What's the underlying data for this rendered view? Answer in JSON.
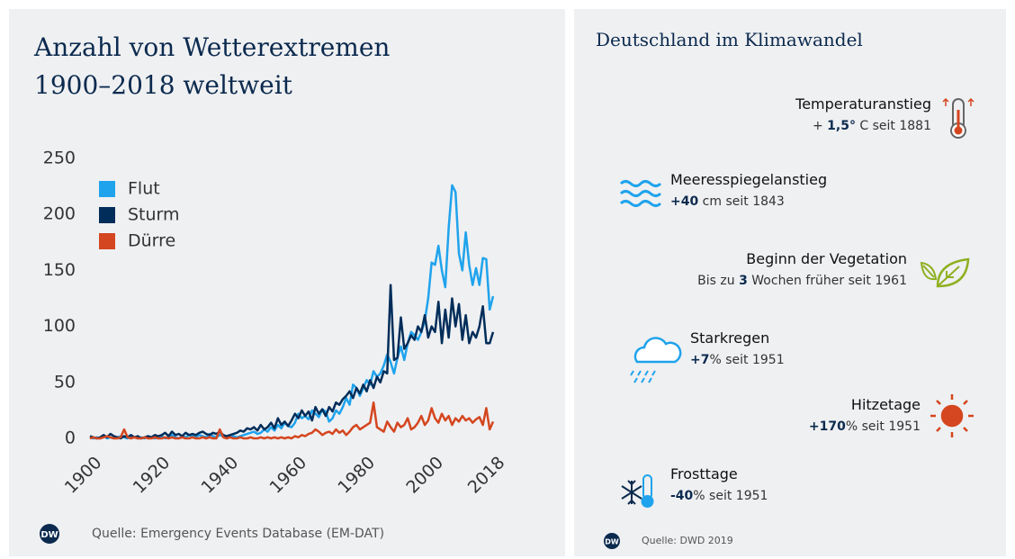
{
  "chart_data": {
    "type": "line",
    "title": "Anzahl von Wetterextremen 1900–2018 weltweit",
    "source": "Quelle: Emergency Events Database (EM-DAT)",
    "x": [
      1900,
      1901,
      1902,
      1903,
      1904,
      1905,
      1906,
      1907,
      1908,
      1909,
      1910,
      1911,
      1912,
      1913,
      1914,
      1915,
      1916,
      1917,
      1918,
      1919,
      1920,
      1921,
      1922,
      1923,
      1924,
      1925,
      1926,
      1927,
      1928,
      1929,
      1930,
      1931,
      1932,
      1933,
      1934,
      1935,
      1936,
      1937,
      1938,
      1939,
      1940,
      1941,
      1942,
      1943,
      1944,
      1945,
      1946,
      1947,
      1948,
      1949,
      1950,
      1951,
      1952,
      1953,
      1954,
      1955,
      1956,
      1957,
      1958,
      1959,
      1960,
      1961,
      1962,
      1963,
      1964,
      1965,
      1966,
      1967,
      1968,
      1969,
      1970,
      1971,
      1972,
      1973,
      1974,
      1975,
      1976,
      1977,
      1978,
      1979,
      1980,
      1981,
      1982,
      1983,
      1984,
      1985,
      1986,
      1987,
      1988,
      1989,
      1990,
      1991,
      1992,
      1993,
      1994,
      1995,
      1996,
      1997,
      1998,
      1999,
      2000,
      2001,
      2002,
      2003,
      2004,
      2005,
      2006,
      2007,
      2008,
      2009,
      2010,
      2011,
      2012,
      2013,
      2014,
      2015,
      2016,
      2017,
      2018
    ],
    "series": [
      {
        "name": "Flut",
        "color": "#1fa3ec",
        "values": [
          1,
          0,
          1,
          0,
          2,
          0,
          1,
          0,
          1,
          2,
          1,
          0,
          2,
          1,
          0,
          1,
          0,
          2,
          1,
          0,
          1,
          2,
          0,
          1,
          3,
          1,
          0,
          2,
          1,
          3,
          2,
          1,
          3,
          2,
          1,
          4,
          2,
          1,
          3,
          2,
          0,
          1,
          2,
          1,
          2,
          3,
          4,
          5,
          6,
          4,
          5,
          8,
          6,
          10,
          7,
          12,
          9,
          14,
          11,
          10,
          14,
          22,
          18,
          20,
          17,
          25,
          22,
          19,
          26,
          24,
          15,
          18,
          25,
          22,
          28,
          36,
          30,
          48,
          45,
          38,
          45,
          52,
          48,
          60,
          55,
          58,
          65,
          75,
          68,
          58,
          72,
          82,
          70,
          85,
          95,
          92,
          88,
          95,
          105,
          125,
          157,
          155,
          172,
          150,
          135,
          188,
          226,
          220,
          165,
          150,
          184,
          155,
          137,
          152,
          137,
          161,
          160,
          115,
          127
        ]
      },
      {
        "name": "Sturm",
        "color": "#002d5a",
        "values": [
          2,
          1,
          0,
          1,
          3,
          1,
          4,
          2,
          1,
          0,
          2,
          1,
          3,
          1,
          2,
          0,
          1,
          2,
          1,
          3,
          2,
          3,
          5,
          2,
          6,
          3,
          4,
          2,
          5,
          3,
          4,
          3,
          5,
          6,
          4,
          3,
          5,
          4,
          6,
          3,
          2,
          3,
          4,
          5,
          7,
          6,
          9,
          8,
          10,
          7,
          12,
          8,
          10,
          14,
          9,
          18,
          12,
          15,
          11,
          16,
          22,
          18,
          25,
          20,
          24,
          16,
          28,
          22,
          26,
          20,
          28,
          24,
          32,
          30,
          35,
          38,
          42,
          36,
          45,
          40,
          48,
          42,
          52,
          45,
          55,
          50,
          60,
          58,
          137,
          70,
          72,
          108,
          80,
          85,
          92,
          88,
          100,
          95,
          110,
          90,
          100,
          95,
          122,
          85,
          115,
          90,
          125,
          100,
          120,
          88,
          110,
          85,
          95,
          90,
          100,
          118,
          85,
          85,
          95
        ]
      },
      {
        "name": "Dürre",
        "color": "#d4461f",
        "values": [
          0,
          1,
          0,
          0,
          1,
          2,
          1,
          0,
          0,
          1,
          8,
          1,
          0,
          1,
          0,
          0,
          1,
          0,
          0,
          1,
          0,
          0,
          1,
          0,
          1,
          0,
          0,
          1,
          0,
          0,
          1,
          0,
          0,
          1,
          0,
          1,
          0,
          0,
          8,
          1,
          0,
          1,
          0,
          0,
          1,
          0,
          0,
          1,
          0,
          0,
          1,
          0,
          1,
          0,
          1,
          0,
          1,
          0,
          1,
          0,
          2,
          1,
          3,
          2,
          4,
          5,
          8,
          6,
          3,
          5,
          6,
          4,
          8,
          5,
          7,
          3,
          6,
          10,
          12,
          8,
          10,
          12,
          14,
          32,
          10,
          8,
          6,
          15,
          10,
          6,
          14,
          10,
          12,
          18,
          8,
          10,
          14,
          20,
          12,
          16,
          27,
          18,
          14,
          22,
          16,
          20,
          12,
          18,
          15,
          20,
          16,
          18,
          14,
          17,
          19,
          12,
          27,
          8,
          15
        ]
      }
    ],
    "xlim": [
      1900,
      2018
    ],
    "xticks": [
      1900,
      1920,
      1940,
      1960,
      1980,
      2000,
      2018
    ],
    "ylim": [
      0,
      250
    ],
    "yticks": [
      0,
      50,
      100,
      150,
      200,
      250
    ],
    "grid": false,
    "legend": "upper left"
  },
  "logo": "DW",
  "panel": {
    "title": "Deutschland im Klimawandel",
    "items": [
      {
        "label": "Temperaturanstieg",
        "detail": [
          {
            "text": "+ ",
            "bold": false
          },
          {
            "text": "1,5°",
            "bold": true
          },
          {
            "text": " C seit 1881",
            "bold": false
          }
        ]
      },
      {
        "label": "Meeresspiegelanstieg",
        "detail": [
          {
            "text": "+40",
            "bold": true
          },
          {
            "text": " cm seit 1843",
            "bold": false
          }
        ]
      },
      {
        "label": "Beginn der Vegetation",
        "detail": [
          {
            "text": "Bis zu ",
            "bold": false
          },
          {
            "text": "3",
            "bold": true
          },
          {
            "text": " Wochen früher seit 1961",
            "bold": false
          }
        ]
      },
      {
        "label": "Starkregen",
        "detail": [
          {
            "text": "+7",
            "bold": true
          },
          {
            "text": "% seit 1951",
            "bold": false
          }
        ]
      },
      {
        "label": "Hitzetage",
        "detail": [
          {
            "text": "+170",
            "bold": true
          },
          {
            "text": "% seit 1951",
            "bold": false
          }
        ]
      },
      {
        "label": "Frosttage",
        "detail": [
          {
            "text": "-40",
            "bold": true
          },
          {
            "text": "% seit 1951",
            "bold": false
          }
        ]
      }
    ],
    "source": "Quelle: DWD 2019"
  }
}
